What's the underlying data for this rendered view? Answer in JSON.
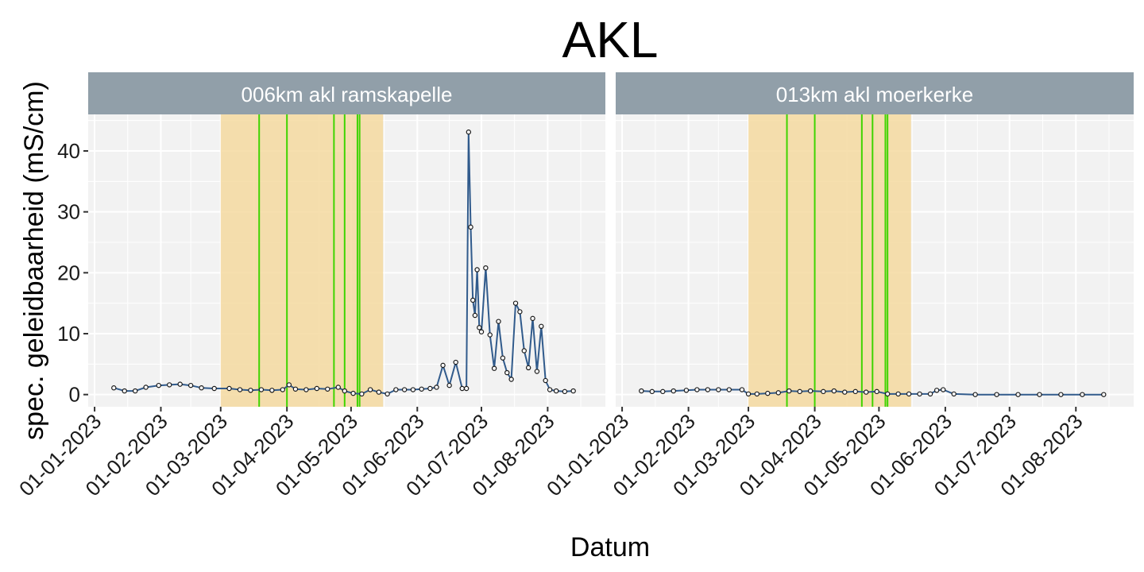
{
  "chart_data": {
    "type": "line",
    "title": "AKL",
    "xlabel": "Datum",
    "ylabel": "spec. geleidbaarheid (mS/cm)",
    "ylim": [
      -2,
      46
    ],
    "yticks": [
      0,
      10,
      20,
      30,
      40
    ],
    "xticks": [
      "01-01-2023",
      "01-02-2023",
      "01-03-2023",
      "01-04-2023",
      "01-05-2023",
      "01-06-2023",
      "01-07-2023",
      "01-08-2023"
    ],
    "xlim": [
      "2022-12-29",
      "2023-08-28"
    ],
    "grid": true,
    "colors": {
      "title_strip": "#919fa9",
      "panel_bg": "#f2f2f2",
      "grid": "#ffffff",
      "shaded_period": "#f5d9a0",
      "event_lines": "#3fd400",
      "series_line": "#315b8c",
      "points": "#1a1a1a"
    },
    "panels": [
      {
        "strip_label": "006km akl ramskapelle",
        "shaded_period": [
          "2023-03-01",
          "2023-05-16"
        ],
        "event_dates": [
          "2023-03-19",
          "2023-04-01",
          "2023-04-23",
          "2023-04-28",
          "2023-05-04",
          "2023-05-05"
        ],
        "series": [
          {
            "x": [
              "2023-01-10",
              "2023-01-15",
              "2023-01-20",
              "2023-01-25",
              "2023-01-31",
              "2023-02-05",
              "2023-02-10",
              "2023-02-15",
              "2023-02-20",
              "2023-02-26",
              "2023-03-05",
              "2023-03-10",
              "2023-03-15",
              "2023-03-20",
              "2023-03-25",
              "2023-03-30",
              "2023-04-02",
              "2023-04-05",
              "2023-04-10",
              "2023-04-15",
              "2023-04-20",
              "2023-04-25",
              "2023-04-28",
              "2023-05-02",
              "2023-05-06",
              "2023-05-10",
              "2023-05-14",
              "2023-05-18",
              "2023-05-22",
              "2023-05-26",
              "2023-05-30",
              "2023-06-03",
              "2023-06-07",
              "2023-06-10",
              "2023-06-13",
              "2023-06-16",
              "2023-06-19",
              "2023-06-22",
              "2023-06-24",
              "2023-06-25",
              "2023-06-26",
              "2023-06-27",
              "2023-06-28",
              "2023-06-29",
              "2023-06-30",
              "2023-07-01",
              "2023-07-03",
              "2023-07-05",
              "2023-07-07",
              "2023-07-09",
              "2023-07-11",
              "2023-07-13",
              "2023-07-15",
              "2023-07-17",
              "2023-07-19",
              "2023-07-21",
              "2023-07-23",
              "2023-07-25",
              "2023-07-27",
              "2023-07-29",
              "2023-07-31",
              "2023-08-02",
              "2023-08-05",
              "2023-08-09",
              "2023-08-13"
            ],
            "y": [
              1.1,
              0.6,
              0.6,
              1.2,
              1.5,
              1.6,
              1.7,
              1.5,
              1.1,
              1.0,
              1.0,
              0.8,
              0.7,
              0.8,
              0.7,
              0.8,
              1.6,
              0.9,
              0.8,
              1.0,
              0.9,
              1.2,
              0.6,
              0.2,
              0.1,
              0.8,
              0.4,
              0.1,
              0.8,
              0.8,
              0.8,
              0.9,
              1.0,
              1.2,
              4.8,
              1.5,
              5.3,
              1.0,
              1.0,
              43.1,
              27.5,
              15.5,
              13.0,
              20.5,
              11.0,
              10.3,
              20.8,
              9.8,
              4.3,
              12.0,
              6.0,
              3.6,
              2.5,
              15.0,
              13.6,
              7.2,
              4.4,
              12.5,
              3.8,
              11.2,
              2.3,
              0.8,
              0.6,
              0.5,
              0.6
            ]
          }
        ]
      },
      {
        "strip_label": "013km akl moerkerke",
        "shaded_period": [
          "2023-03-01",
          "2023-05-16"
        ],
        "event_dates": [
          "2023-03-19",
          "2023-04-01",
          "2023-04-23",
          "2023-04-28",
          "2023-05-04",
          "2023-05-05"
        ],
        "series": [
          {
            "x": [
              "2023-01-10",
              "2023-01-15",
              "2023-01-20",
              "2023-01-25",
              "2023-01-31",
              "2023-02-05",
              "2023-02-10",
              "2023-02-15",
              "2023-02-20",
              "2023-02-26",
              "2023-03-01",
              "2023-03-05",
              "2023-03-10",
              "2023-03-15",
              "2023-03-20",
              "2023-03-25",
              "2023-03-30",
              "2023-04-05",
              "2023-04-10",
              "2023-04-15",
              "2023-04-20",
              "2023-04-25",
              "2023-04-30",
              "2023-05-05",
              "2023-05-10",
              "2023-05-15",
              "2023-05-20",
              "2023-05-25",
              "2023-05-28",
              "2023-05-31",
              "2023-06-05",
              "2023-06-15",
              "2023-06-25",
              "2023-07-05",
              "2023-07-15",
              "2023-07-25",
              "2023-08-04",
              "2023-08-14"
            ],
            "y": [
              0.6,
              0.5,
              0.5,
              0.6,
              0.7,
              0.8,
              0.8,
              0.8,
              0.8,
              0.8,
              0.1,
              0.1,
              0.2,
              0.3,
              0.6,
              0.5,
              0.6,
              0.5,
              0.6,
              0.4,
              0.5,
              0.4,
              0.5,
              0.1,
              0.1,
              0.1,
              0.1,
              0.1,
              0.7,
              0.8,
              0.1,
              0.0,
              0.0,
              0.0,
              0.0,
              0.0,
              0.0,
              0.0
            ]
          }
        ]
      }
    ]
  }
}
